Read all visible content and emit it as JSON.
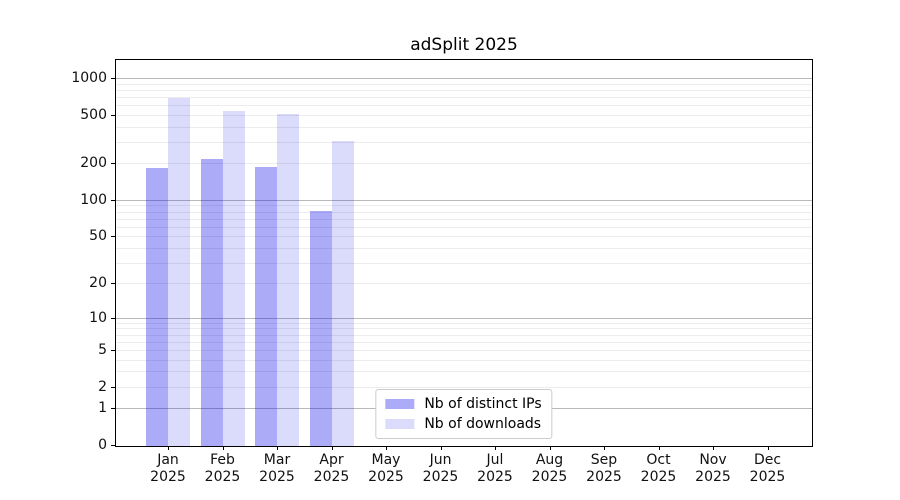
{
  "chart_data": {
    "type": "bar",
    "title": "adSplit 2025",
    "categories": [
      "Jan",
      "Feb",
      "Mar",
      "Apr",
      "May",
      "Jun",
      "Jul",
      "Aug",
      "Sep",
      "Oct",
      "Nov",
      "Dec"
    ],
    "category_year": "2025",
    "series": [
      {
        "name": "Nb of distinct IPs",
        "color": "rgba(0,0,230,0.33)",
        "values": [
          185,
          220,
          190,
          83,
          0,
          0,
          0,
          0,
          0,
          0,
          0,
          0
        ]
      },
      {
        "name": "Nb of downloads",
        "color": "rgba(0,0,230,0.14)",
        "values": [
          700,
          550,
          520,
          310,
          0,
          0,
          0,
          0,
          0,
          0,
          0,
          0
        ]
      }
    ],
    "xlabel": "",
    "ylabel": "",
    "y_axis": {
      "scale": "log1p",
      "ticks": [
        0,
        1,
        2,
        5,
        10,
        20,
        50,
        100,
        200,
        500,
        1000
      ],
      "major_gridlines": [
        1,
        10,
        100,
        1000
      ],
      "minor_gridline_decades": [
        1,
        10,
        100
      ],
      "ymax": 1430
    },
    "grid": true,
    "legend_position": "lower center",
    "colors": {
      "major_grid": "#b9b9b9",
      "minor_grid": "#ececec",
      "axis": "#000000",
      "text": "#111111",
      "background": "#ffffff"
    }
  }
}
